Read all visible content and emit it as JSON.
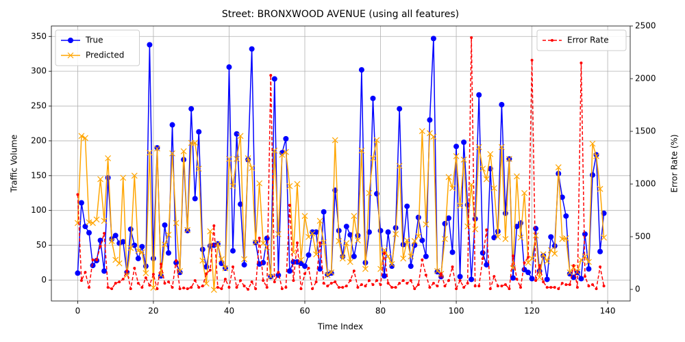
{
  "chart_data": {
    "type": "line",
    "title": "Street: BRONXWOOD AVENUE (using all features)",
    "xlabel": "Time Index",
    "ylabel": "Traffic Volume",
    "y2label": "Error Rate (%)",
    "x": [
      0,
      1,
      2,
      3,
      4,
      5,
      6,
      7,
      8,
      9,
      10,
      11,
      12,
      13,
      14,
      15,
      16,
      17,
      18,
      19,
      20,
      21,
      22,
      23,
      24,
      25,
      26,
      27,
      28,
      29,
      30,
      31,
      32,
      33,
      34,
      35,
      36,
      37,
      38,
      39,
      40,
      41,
      42,
      43,
      44,
      45,
      46,
      47,
      48,
      49,
      50,
      51,
      52,
      53,
      54,
      55,
      56,
      57,
      58,
      59,
      60,
      61,
      62,
      63,
      64,
      65,
      66,
      67,
      68,
      69,
      70,
      71,
      72,
      73,
      74,
      75,
      76,
      77,
      78,
      79,
      80,
      81,
      82,
      83,
      84,
      85,
      86,
      87,
      88,
      89,
      90,
      91,
      92,
      93,
      94,
      95,
      96,
      97,
      98,
      99,
      100,
      101,
      102,
      103,
      104,
      105,
      106,
      107,
      108,
      109,
      110,
      111,
      112,
      113,
      114,
      115,
      116,
      117,
      118,
      119,
      120,
      121,
      122,
      123,
      124,
      125,
      126,
      127,
      128,
      129,
      130,
      131,
      132,
      133,
      134,
      135,
      136,
      137,
      138,
      139
    ],
    "xlim": [
      -6.95,
      145.95
    ],
    "xticks": [
      0,
      20,
      40,
      60,
      80,
      100,
      120,
      140
    ],
    "ylim": [
      -30,
      365
    ],
    "yticks": [
      0,
      50,
      100,
      150,
      200,
      250,
      300,
      350
    ],
    "y2lim": [
      -110,
      2500
    ],
    "y2ticks": [
      0,
      500,
      1000,
      1500,
      2000,
      2500
    ],
    "grid": true,
    "legend_loc": "upper left",
    "legend2_loc": "upper right",
    "series": [
      {
        "name": "True",
        "color": "#0000ff",
        "marker": "o",
        "linestyle": "solid",
        "axis": "y",
        "values": [
          10,
          111,
          77,
          68,
          21,
          28,
          57,
          13,
          147,
          59,
          64,
          53,
          55,
          11,
          73,
          50,
          31,
          48,
          20,
          338,
          31,
          190,
          6,
          79,
          39,
          223,
          25,
          11,
          173,
          71,
          246,
          117,
          213,
          44,
          19,
          49,
          50,
          52,
          24,
          17,
          306,
          42,
          210,
          109,
          22,
          173,
          332,
          54,
          23,
          25,
          60,
          5,
          289,
          7,
          183,
          203,
          13,
          26,
          26,
          24,
          20,
          36,
          69,
          69,
          16,
          98,
          8,
          10,
          129,
          71,
          34,
          77,
          65,
          34,
          64,
          302,
          25,
          69,
          261,
          124,
          71,
          6,
          69,
          20,
          75,
          246,
          51,
          106,
          20,
          50,
          90,
          57,
          34,
          230,
          347,
          12,
          5,
          81,
          89,
          40,
          192,
          5,
          198,
          108,
          1,
          88,
          266,
          39,
          22,
          160,
          61,
          70,
          252,
          96,
          174,
          3,
          77,
          82,
          15,
          11,
          2,
          74,
          13,
          35,
          1,
          62,
          49,
          153,
          119,
          92,
          9,
          4,
          11,
          2,
          66,
          16,
          151,
          180,
          41,
          96
        ]
      },
      {
        "name": "Predicted",
        "color": "#ffa500",
        "marker": "x",
        "linestyle": "solid",
        "axis": "y",
        "values": [
          82,
          207,
          204,
          83,
          82,
          87,
          145,
          85,
          175,
          56,
          29,
          24,
          147,
          7,
          46,
          150,
          42,
          40,
          10,
          183,
          -11,
          189,
          7,
          51,
          65,
          182,
          82,
          13,
          185,
          72,
          197,
          197,
          160,
          28,
          -5,
          70,
          -14,
          52,
          30,
          17,
          174,
          135,
          174,
          207,
          30,
          175,
          161,
          54,
          139,
          53,
          47,
          5,
          186,
          66,
          180,
          184,
          135,
          40,
          138,
          29,
          92,
          62,
          67,
          37,
          85,
          54,
          7,
          11,
          201,
          56,
          31,
          53,
          26,
          92,
          57,
          186,
          16,
          125,
          175,
          201,
          16,
          43,
          34,
          23,
          66,
          164,
          31,
          57,
          34,
          56,
          63,
          214,
          80,
          211,
          206,
          13,
          9,
          59,
          148,
          132,
          178,
          107,
          173,
          77,
          137,
          73,
          191,
          160,
          145,
          181,
          132,
          62,
          191,
          59,
          174,
          17,
          149,
          61,
          125,
          25,
          31,
          64,
          4,
          37,
          27,
          43,
          38,
          162,
          59,
          60,
          11,
          18,
          12,
          29,
          34,
          26,
          196,
          178,
          131,
          61
        ]
      },
      {
        "name": "Error Rate",
        "color": "#ff0000",
        "marker": ".",
        "linestyle": "dashed",
        "axis": "y2",
        "values": [
          900,
          84,
          162,
          19,
          280,
          280,
          409,
          532,
          19,
          6,
          58,
          71,
          97,
          175,
          6,
          201,
          58,
          19,
          110,
          39,
          143,
          6,
          240,
          58,
          71,
          19,
          273,
          6,
          13,
          6,
          19,
          84,
          19,
          32,
          149,
          182,
          604,
          19,
          6,
          97,
          19,
          214,
          19,
          84,
          32,
          0,
          71,
          6,
          487,
          84,
          19,
          2032,
          71,
          162,
          6,
          19,
          799,
          84,
          442,
          6,
          149,
          201,
          6,
          71,
          442,
          58,
          32,
          58,
          71,
          19,
          19,
          32,
          84,
          175,
          19,
          45,
          32,
          84,
          45,
          84,
          45,
          344,
          58,
          19,
          19,
          58,
          84,
          58,
          84,
          6,
          45,
          280,
          136,
          19,
          58,
          32,
          149,
          32,
          84,
          214,
          6,
          84,
          19,
          58,
          2390,
          32,
          32,
          292,
          565,
          6,
          123,
          32,
          32,
          45,
          6,
          318,
          97,
          19,
          253,
          305,
          2175,
          84,
          227,
          71,
          19,
          19,
          19,
          6,
          58,
          45,
          45,
          227,
          19,
          2149,
          123,
          32,
          45,
          6,
          214,
          32
        ]
      }
    ]
  }
}
